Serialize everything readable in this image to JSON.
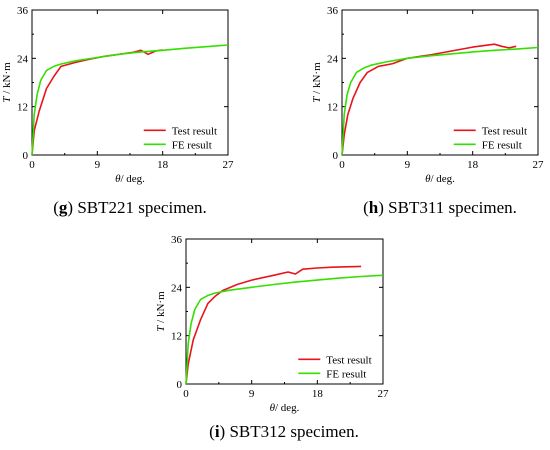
{
  "colors": {
    "test": "#e8141c",
    "fe": "#33e000",
    "axis": "#000000"
  },
  "chart_data": [
    {
      "type": "line",
      "caption_letter": "g",
      "caption_text": " SBT221 specimen.",
      "xlabel_sym": "θ",
      "xlabel_rest": "/ deg.",
      "ylabel_sym": "T",
      "ylabel_rest": " / kN·m",
      "xlim": [
        0,
        27
      ],
      "ylim": [
        0,
        36
      ],
      "xticks": [
        "0",
        "9",
        "18",
        "27"
      ],
      "yticks": [
        "0",
        "12",
        "24",
        "36"
      ],
      "legend_position": "bottom-right",
      "series": [
        {
          "name": "Test result",
          "color": "#e8141c",
          "points": [
            [
              0,
              0
            ],
            [
              0.3,
              6
            ],
            [
              1,
              11
            ],
            [
              2,
              16.5
            ],
            [
              3,
              19.5
            ],
            [
              4,
              22
            ],
            [
              6,
              23
            ],
            [
              8,
              23.8
            ],
            [
              10,
              24.5
            ],
            [
              12,
              25
            ],
            [
              14,
              25.5
            ],
            [
              15,
              26
            ],
            [
              16,
              25
            ],
            [
              17,
              25.8
            ],
            [
              18,
              26.1
            ]
          ]
        },
        {
          "name": "FE  result",
          "color": "#33e000",
          "points": [
            [
              0,
              0
            ],
            [
              0.3,
              10
            ],
            [
              0.7,
              15
            ],
            [
              1.2,
              18.5
            ],
            [
              2,
              21
            ],
            [
              3,
              22
            ],
            [
              4,
              22.6
            ],
            [
              6,
              23.4
            ],
            [
              9,
              24.2
            ],
            [
              12,
              25
            ],
            [
              15,
              25.6
            ],
            [
              18,
              26
            ],
            [
              21,
              26.5
            ],
            [
              24,
              26.9
            ],
            [
              27,
              27.3
            ]
          ]
        }
      ]
    },
    {
      "type": "line",
      "caption_letter": "h",
      "caption_text": " SBT311 specimen.",
      "xlabel_sym": "θ",
      "xlabel_rest": "/ deg.",
      "ylabel_sym": "T",
      "ylabel_rest": " / kN·m",
      "xlim": [
        0,
        27
      ],
      "ylim": [
        0,
        36
      ],
      "xticks": [
        "0",
        "9",
        "18",
        "27"
      ],
      "yticks": [
        "0",
        "12",
        "24",
        "36"
      ],
      "legend_position": "bottom-right",
      "series": [
        {
          "name": "Test result",
          "color": "#e8141c",
          "points": [
            [
              0,
              0
            ],
            [
              0.3,
              5
            ],
            [
              0.8,
              10
            ],
            [
              1.5,
              14
            ],
            [
              2.5,
              18
            ],
            [
              3.5,
              20.5
            ],
            [
              5,
              22
            ],
            [
              7,
              22.7
            ],
            [
              9,
              24
            ],
            [
              12,
              24.8
            ],
            [
              15,
              25.8
            ],
            [
              18,
              26.8
            ],
            [
              21,
              27.5
            ],
            [
              22,
              27
            ],
            [
              23,
              26.6
            ],
            [
              24,
              27
            ]
          ]
        },
        {
          "name": "FE  result",
          "color": "#33e000",
          "points": [
            [
              0,
              0
            ],
            [
              0.3,
              10
            ],
            [
              0.7,
              15
            ],
            [
              1.2,
              18
            ],
            [
              2,
              20.5
            ],
            [
              3,
              21.6
            ],
            [
              4,
              22.3
            ],
            [
              6,
              23.1
            ],
            [
              9,
              24
            ],
            [
              12,
              24.6
            ],
            [
              15,
              25.1
            ],
            [
              18,
              25.6
            ],
            [
              21,
              26
            ],
            [
              24,
              26.3
            ],
            [
              27,
              26.7
            ]
          ]
        }
      ]
    },
    {
      "type": "line",
      "caption_letter": "i",
      "caption_text": " SBT312 specimen.",
      "xlabel_sym": "θ",
      "xlabel_rest": "/ deg.",
      "ylabel_sym": "T",
      "ylabel_rest": " / kN·m",
      "xlim": [
        0,
        27
      ],
      "ylim": [
        0,
        36
      ],
      "xticks": [
        "0",
        "9",
        "18",
        "27"
      ],
      "yticks": [
        "0",
        "12",
        "24",
        "36"
      ],
      "legend_position": "bottom-right",
      "series": [
        {
          "name": "Test result",
          "color": "#e8141c",
          "points": [
            [
              0,
              0
            ],
            [
              0.3,
              5
            ],
            [
              1,
              11
            ],
            [
              2,
              16
            ],
            [
              3,
              20
            ],
            [
              4,
              21.8
            ],
            [
              5,
              23.2
            ],
            [
              7,
              24.7
            ],
            [
              9,
              25.8
            ],
            [
              12,
              27
            ],
            [
              14,
              27.8
            ],
            [
              15,
              27.3
            ],
            [
              16,
              28.5
            ],
            [
              18,
              28.8
            ],
            [
              20,
              29
            ],
            [
              24,
              29.2
            ]
          ]
        },
        {
          "name": "FE  result",
          "color": "#33e000",
          "points": [
            [
              0,
              0
            ],
            [
              0.3,
              10
            ],
            [
              0.7,
              15
            ],
            [
              1.2,
              18.5
            ],
            [
              2,
              21
            ],
            [
              3,
              22
            ],
            [
              4,
              22.6
            ],
            [
              6,
              23.3
            ],
            [
              9,
              24
            ],
            [
              12,
              24.7
            ],
            [
              15,
              25.3
            ],
            [
              18,
              25.8
            ],
            [
              21,
              26.3
            ],
            [
              24,
              26.7
            ],
            [
              27,
              27
            ]
          ]
        }
      ]
    }
  ]
}
